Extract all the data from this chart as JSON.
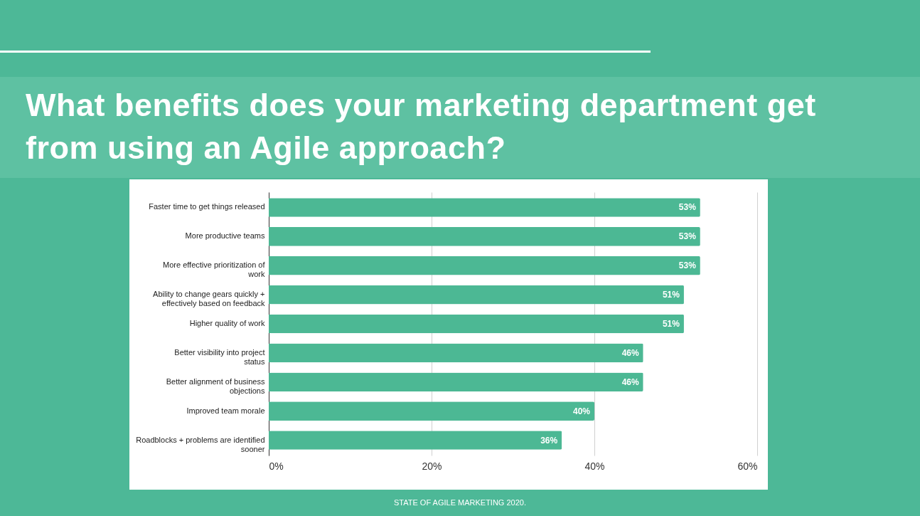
{
  "chart_data": {
    "type": "bar",
    "orientation": "horizontal",
    "title": "What benefits does your marketing department get from using an Agile approach?",
    "categories": [
      "Faster time to get things released",
      "More productive teams",
      "More effective prioritization of work",
      "Ability to change gears quickly + effectively based on feedback",
      "Higher quality of work",
      "Better visibility into project status",
      "Better alignment of business objections",
      "Improved team morale",
      "Roadblocks + problems are identified sooner"
    ],
    "values": [
      53,
      53,
      53,
      51,
      51,
      46,
      46,
      40,
      36
    ],
    "value_labels": [
      "53%",
      "53%",
      "53%",
      "51%",
      "51%",
      "46%",
      "46%",
      "40%",
      "36%"
    ],
    "color": "#4cb894",
    "xlim": [
      0,
      60
    ],
    "xticks": [
      {
        "value": 0,
        "label": "0%"
      },
      {
        "value": 20,
        "label": "20%"
      },
      {
        "value": 40,
        "label": "40%"
      },
      {
        "value": 60,
        "label": "60%"
      }
    ],
    "grid": "x",
    "annotations": [
      "STATE OF AGILE MARKETING 2020."
    ]
  }
}
